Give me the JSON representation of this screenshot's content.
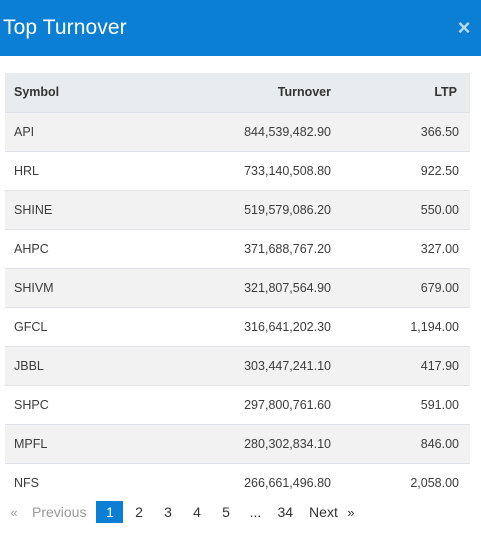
{
  "header": {
    "title": "Top Turnover",
    "close_glyph": "×",
    "background": "#0b7fd4"
  },
  "table": {
    "columns": {
      "symbol": "Symbol",
      "turnover": "Turnover",
      "ltp": "LTP"
    },
    "rows": [
      {
        "symbol": "API",
        "turnover": "844,539,482.90",
        "ltp": "366.50"
      },
      {
        "symbol": "HRL",
        "turnover": "733,140,508.80",
        "ltp": "922.50"
      },
      {
        "symbol": "SHINE",
        "turnover": "519,579,086.20",
        "ltp": "550.00"
      },
      {
        "symbol": "AHPC",
        "turnover": "371,688,767.20",
        "ltp": "327.00"
      },
      {
        "symbol": "SHIVM",
        "turnover": "321,807,564.90",
        "ltp": "679.00"
      },
      {
        "symbol": "GFCL",
        "turnover": "316,641,202.30",
        "ltp": "1,194.00"
      },
      {
        "symbol": "JBBL",
        "turnover": "303,447,241.10",
        "ltp": "417.90"
      },
      {
        "symbol": "SHPC",
        "turnover": "297,800,761.60",
        "ltp": "591.00"
      },
      {
        "symbol": "MPFL",
        "turnover": "280,302,834.10",
        "ltp": "846.00"
      },
      {
        "symbol": "NFS",
        "turnover": "266,661,496.80",
        "ltp": "2,058.00"
      }
    ]
  },
  "pagination": {
    "first_arrow": "«",
    "previous_label": "Previous",
    "pages": [
      "1",
      "2",
      "3",
      "4",
      "5"
    ],
    "active_page": "1",
    "ellipsis": "...",
    "last_page": "34",
    "next_label": "Next",
    "last_arrow": "»",
    "active_color": "#0b7fd4"
  }
}
